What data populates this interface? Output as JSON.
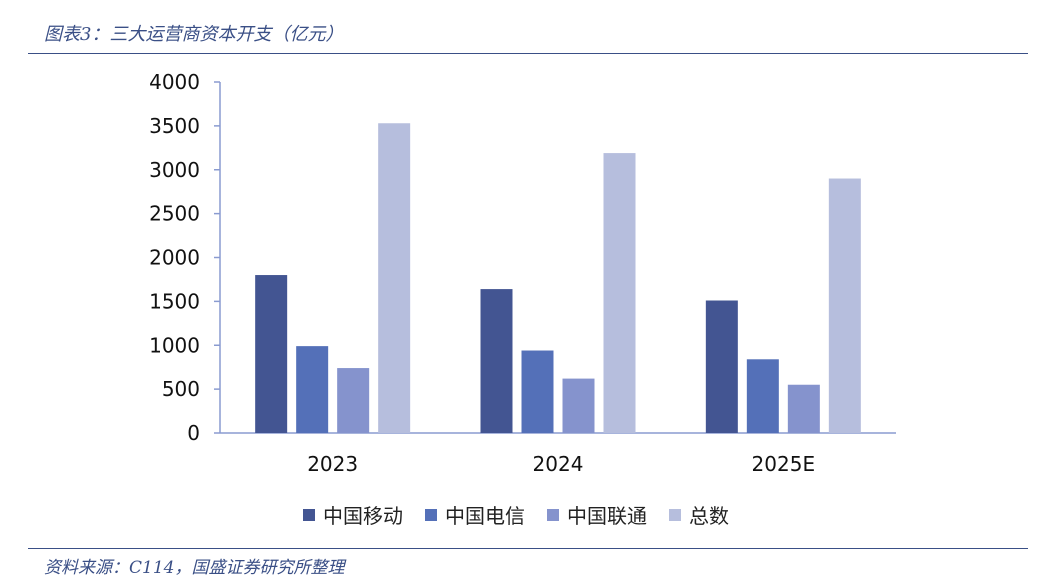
{
  "header": {
    "title": "图表3：三大运营商资本开支（亿元）"
  },
  "footer": {
    "source": "资料来源：C114，国盛证券研究所整理"
  },
  "colors": {
    "rule": "#3a4f86",
    "axis": "#8a9bd0",
    "series": [
      "#435592",
      "#5470b8",
      "#8593cd",
      "#b6bedd"
    ]
  },
  "chart_data": {
    "type": "bar",
    "categories": [
      "2023",
      "2024",
      "2025E"
    ],
    "series": [
      {
        "name": "中国移动",
        "values": [
          1800,
          1640,
          1510
        ]
      },
      {
        "name": "中国电信",
        "values": [
          990,
          940,
          840
        ]
      },
      {
        "name": "中国联通",
        "values": [
          740,
          620,
          550
        ]
      },
      {
        "name": "总数",
        "values": [
          3530,
          3190,
          2900
        ]
      }
    ],
    "ylim": [
      0,
      4000
    ],
    "yticks": [
      "0",
      "500",
      "1000",
      "1500",
      "2000",
      "2500",
      "3000",
      "3500",
      "4000"
    ],
    "grid": false,
    "legend_position": "bottom"
  }
}
